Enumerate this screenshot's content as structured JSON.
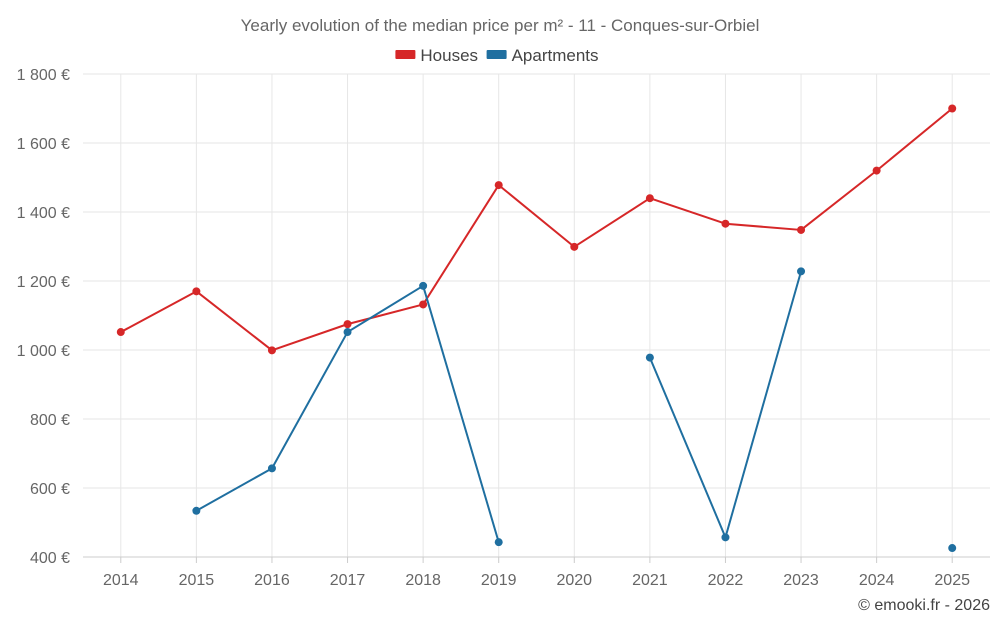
{
  "chart_data": {
    "type": "line",
    "title": "Yearly evolution of the median price per m² - 11 - Conques-sur-Orbiel",
    "categories": [
      "2014",
      "2015",
      "2016",
      "2017",
      "2018",
      "2019",
      "2020",
      "2021",
      "2022",
      "2023",
      "2024",
      "2025"
    ],
    "series": [
      {
        "name": "Houses",
        "color": "#d62728",
        "values": [
          1052,
          1170,
          999,
          1075,
          1132,
          1478,
          1299,
          1440,
          1366,
          1348,
          1520,
          1700
        ]
      },
      {
        "name": "Apartments",
        "color": "#1f6fa0",
        "values": [
          null,
          534,
          657,
          1052,
          1186,
          443,
          null,
          978,
          457,
          1228,
          null,
          426
        ]
      }
    ],
    "ylim": [
      400,
      1800
    ],
    "yticks": [
      400,
      600,
      800,
      1000,
      1200,
      1400,
      1600,
      1800
    ],
    "ytick_labels": [
      "400 €",
      "600 €",
      "800 €",
      "1 000 €",
      "1 200 €",
      "1 400 €",
      "1 600 €",
      "1 800 €"
    ],
    "xlabel": "",
    "ylabel": "",
    "legend_position": "top-center",
    "grid": true
  },
  "credit": "© emooki.fr - 2026"
}
